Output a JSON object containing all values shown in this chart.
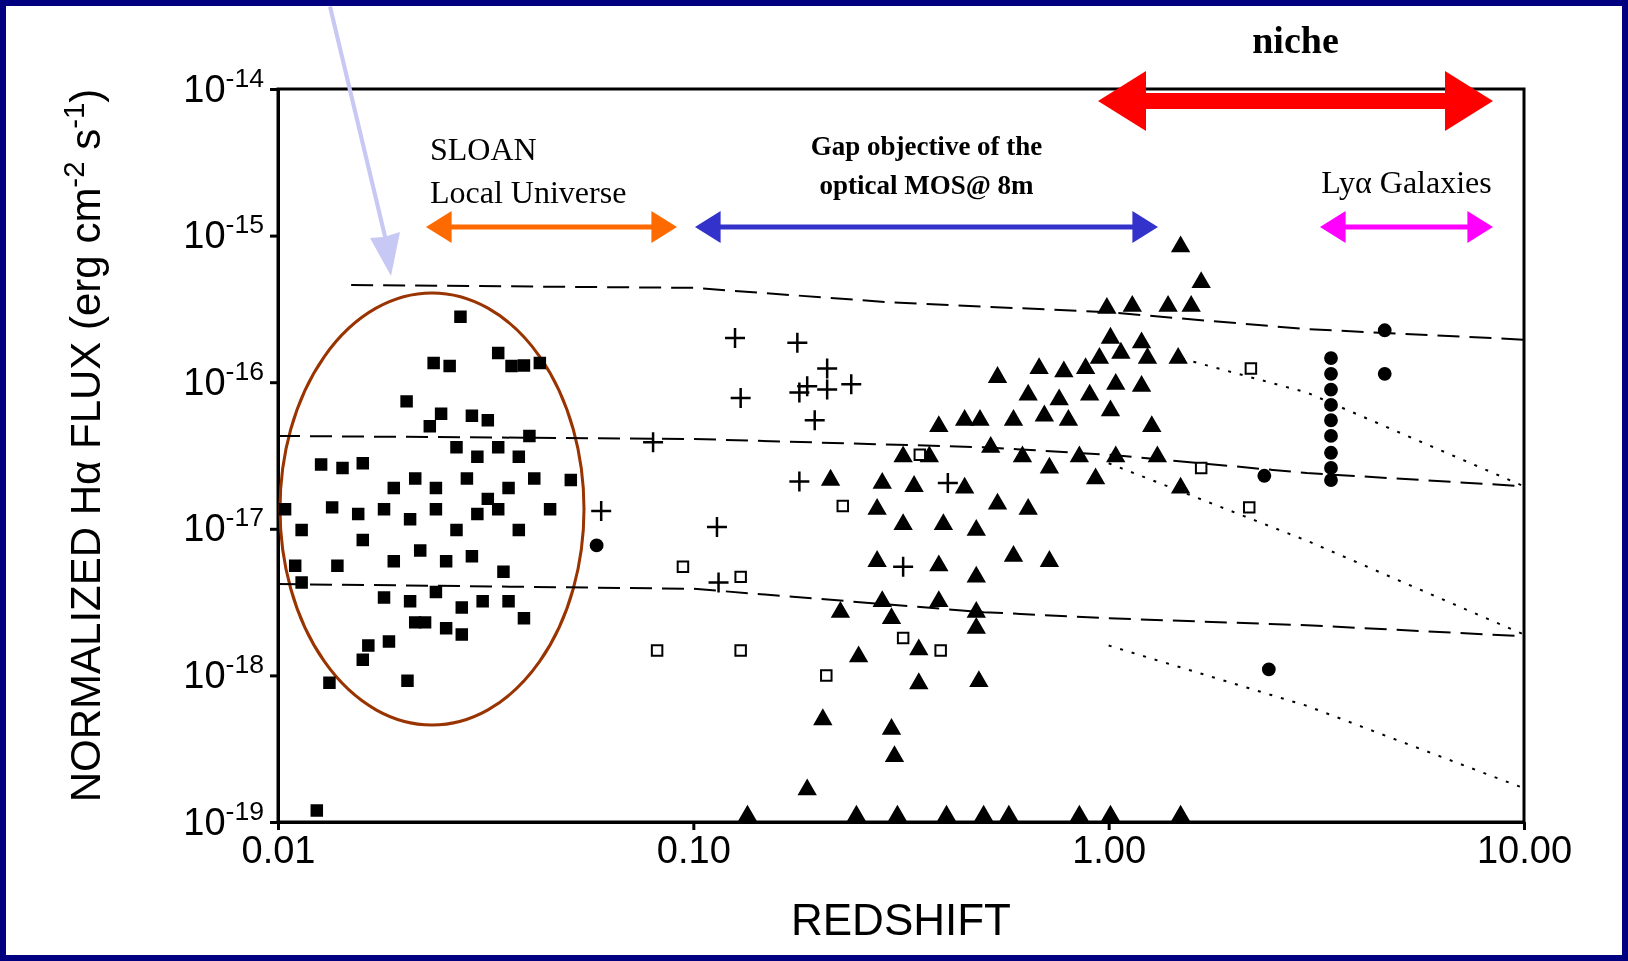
{
  "chart_data": {
    "type": "scatter",
    "xlabel": "REDSHIFT",
    "ylabel": "NORMALIZED Hα FLUX (erg cm$^{-2}$ s$^{-1}$)",
    "log": "xy",
    "xlim": [
      0.01,
      10
    ],
    "ylim": [
      1e-19,
      1e-14
    ],
    "xticks": [
      0.01,
      {
        "value": 0.1,
        "label": "0.10"
      },
      {
        "value": 1,
        "label": "1.00"
      },
      {
        "value": 10,
        "label": "10.00"
      }
    ],
    "yticks": [
      {
        "value": 1e-19,
        "label": "10$^{-19}$"
      },
      {
        "value": 1e-18,
        "label": "10$^{-18}$"
      },
      {
        "value": 1e-17,
        "label": "10$^{-17}$"
      },
      {
        "value": 1e-16,
        "label": "10$^{-16}$"
      },
      {
        "value": 1e-15,
        "label": "10$^{-15}$"
      },
      {
        "value": 1e-14,
        "label": "10$^{-14}$"
      }
    ],
    "annotations": [
      "SLOAN\nLocal Universe",
      "Gap objective of the\noptical MOS@ 8m",
      "niche",
      "Lyα Galaxies"
    ],
    "series": [
      {
        "type": "line",
        "color": "#000000",
        "line_style": "dashed",
        "x": [
          0.015,
          0.1,
          0.3,
          1,
          3,
          10
        ],
        "values": [
          4.6e-16,
          4.4e-16,
          3.5e-16,
          3e-16,
          2.3e-16,
          1.95e-16
        ]
      },
      {
        "type": "line",
        "color": "#000000",
        "line_style": "dotted",
        "x": [
          1.5,
          3,
          10
        ],
        "values": [
          1.45e-16,
          8.5e-17,
          1.95e-17
        ]
      },
      {
        "type": "line",
        "color": "#000000",
        "line_style": "dashed",
        "x": [
          0.01,
          0.1,
          0.5,
          1,
          3,
          10
        ],
        "values": [
          4.3e-17,
          4.1e-17,
          3.6e-17,
          3.2e-17,
          2.4e-17,
          1.95e-17
        ]
      },
      {
        "type": "line",
        "color": "#000000",
        "line_style": "dotted",
        "x": [
          1,
          3,
          10
        ],
        "values": [
          2.8e-17,
          8.3e-18,
          1.9e-18
        ]
      },
      {
        "type": "line",
        "color": "#000000",
        "line_style": "dashed",
        "x": [
          0.01,
          0.1,
          0.5,
          1,
          3,
          10
        ],
        "values": [
          4.2e-18,
          3.9e-18,
          2.7e-18,
          2.45e-18,
          2.2e-18,
          1.85e-18
        ]
      },
      {
        "type": "line",
        "color": "#000000",
        "line_style": "dotted",
        "x": [
          1,
          3,
          10
        ],
        "values": [
          1.6e-18,
          6.2e-19,
          1.7e-19
        ]
      },
      {
        "marker": "square",
        "color": "#000000",
        "x": [
          0.0275,
          0.0237,
          0.0259,
          0.0339,
          0.0365,
          0.0391,
          0.0427,
          0.0204,
          0.0232,
          0.0247,
          0.0293,
          0.032,
          0.0269,
          0.0302,
          0.0339,
          0.038,
          0.0403,
          0.0127,
          0.0143,
          0.016,
          0.019,
          0.0214,
          0.024,
          0.0285,
          0.032,
          0.0359,
          0.0414,
          0.0507,
          0.0104,
          0.0114,
          0.0135,
          0.0156,
          0.018,
          0.0208,
          0.024,
          0.0269,
          0.0302,
          0.0339,
          0.0452,
          0.038,
          0.011,
          0.0139,
          0.016,
          0.019,
          0.022,
          0.0254,
          0.0293,
          0.0349,
          0.0114,
          0.018,
          0.0208,
          0.024,
          0.0277,
          0.0311,
          0.0359,
          0.0391,
          0.0165,
          0.0185,
          0.0214,
          0.0226,
          0.0254,
          0.0277,
          0.016,
          0.0205,
          0.0133,
          0.0124
        ],
        "values": [
          2.8e-16,
          1.35e-16,
          1.29e-16,
          1.58e-16,
          1.29e-16,
          1.3e-16,
          1.35e-16,
          7.4e-17,
          5e-17,
          6.1e-17,
          5.9e-17,
          5.5e-17,
          3.6e-17,
          3.1e-17,
          3.6e-17,
          3.1e-17,
          4.3e-17,
          2.75e-17,
          2.6e-17,
          2.8e-17,
          1.9e-17,
          2.2e-17,
          1.9e-17,
          2.2e-17,
          1.6e-17,
          1.9e-17,
          2.2e-17,
          2.15e-17,
          1.36e-17,
          9.8e-18,
          1.4e-17,
          1.26e-17,
          1.36e-17,
          1.16e-17,
          1.36e-17,
          9.8e-18,
          1.26e-17,
          1.36e-17,
          1.36e-17,
          9.8e-18,
          5.6e-18,
          5.6e-18,
          8.4e-18,
          6e-18,
          7.1e-18,
          6e-18,
          6.5e-18,
          5.1e-18,
          4.3e-18,
          3.4e-18,
          3.2e-18,
          3.7e-18,
          2.9e-18,
          3.2e-18,
          3.2e-18,
          2.45e-18,
          1.6e-18,
          1.7e-18,
          2.3e-18,
          2.3e-18,
          2.1e-18,
          1.9e-18,
          1.28e-18,
          9.2e-19,
          8.9e-19,
          1.2e-19
        ]
      },
      {
        "marker": "triangle",
        "color": "#000000",
        "x": [
          1.49,
          1.67,
          0.99,
          1.14,
          1.39,
          1.58,
          0.68,
          0.78,
          0.88,
          1.01,
          1.2,
          0.95,
          1.07,
          1.24,
          1.47,
          0.54,
          0.64,
          0.76,
          0.9,
          1.04,
          1.2,
          0.49,
          0.59,
          0.7,
          0.8,
          1.01,
          1.27,
          0.39,
          0.45,
          0.52,
          0.62,
          0.72,
          0.85,
          1.04,
          1.31,
          0.32,
          0.37,
          0.285,
          0.34,
          0.45,
          0.54,
          0.64,
          0.93,
          1.49,
          0.214,
          0.277,
          0.32,
          0.4,
          0.48,
          0.59,
          0.72,
          0.277,
          0.39,
          0.48,
          0.285,
          0.39,
          0.48,
          0.226,
          0.3,
          0.349,
          0.48,
          0.25,
          0.349,
          0.487,
          0.205,
          0.3,
          0.305,
          0.188,
          0.135,
          0.247,
          0.31,
          0.407,
          0.5,
          0.575,
          0.85,
          1.01,
          1.49
        ],
        "values": [
          8.4e-16,
          4.8e-16,
          3.2e-16,
          3.3e-16,
          3.3e-16,
          3.3e-16,
          1.24e-16,
          1.18e-16,
          1.24e-16,
          2e-16,
          1.86e-16,
          1.46e-16,
          1.58e-16,
          1.46e-16,
          1.46e-16,
          1.08e-16,
          8.2e-17,
          7.6e-17,
          8.2e-17,
          9.7e-17,
          9.4e-17,
          5.5e-17,
          5.5e-17,
          5.9e-17,
          5.5e-17,
          6.4e-17,
          5e-17,
          5e-17,
          5.5e-17,
          3.6e-17,
          3.1e-17,
          2.6e-17,
          3.1e-17,
          3.1e-17,
          3.1e-17,
          3.1e-17,
          3.1e-17,
          2.05e-17,
          1.95e-17,
          1.9e-17,
          1.48e-17,
          1.36e-17,
          2.2e-17,
          1.9e-17,
          2.15e-17,
          1.36e-17,
          1.07e-17,
          1.07e-17,
          9.8e-18,
          6.5e-18,
          6e-18,
          6e-18,
          5.6e-18,
          4.7e-18,
          3.2e-18,
          3.2e-18,
          2.7e-18,
          2.7e-18,
          2.45e-18,
          1.5e-18,
          2.1e-18,
          1.34e-18,
          8.8e-19,
          9.1e-19,
          5e-19,
          4.3e-19,
          2.8e-19,
          1.66e-19,
          1.1e-19,
          1.1e-19,
          1.1e-19,
          1.1e-19,
          1.1e-19,
          1.1e-19,
          1.1e-19,
          1.1e-19,
          1.1e-19
        ]
      },
      {
        "marker": "square",
        "color": "#ffffff",
        "x": [
          2.2,
          1.67,
          2.18,
          0.351,
          0.229,
          0.0944,
          0.13,
          0.0818,
          0.13,
          0.32,
          0.209,
          0.394
        ],
        "values": [
          1.24e-16,
          2.6e-17,
          1.4e-17,
          3.2e-17,
          1.43e-17,
          5.5e-18,
          4.7e-18,
          1.48e-18,
          1.48e-18,
          1.8e-18,
          1e-18,
          1.48e-18
        ]
      },
      {
        "marker": "cross",
        "color": "#000000",
        "x": [
          0.126,
          0.178,
          0.21,
          0.13,
          0.18,
          0.188,
          0.21,
          0.24,
          0.196,
          0.08,
          0.06,
          0.114,
          0.18,
          0.32,
          0.115,
          0.41
        ],
        "values": [
          2e-16,
          1.86e-16,
          1.24e-16,
          7.8e-17,
          8.5e-17,
          9.4e-17,
          8.9e-17,
          9.7e-17,
          5.5e-17,
          3.9e-17,
          1.32e-17,
          1.03e-17,
          2.1e-17,
          5.5e-18,
          4.3e-18,
          2.05e-17
        ]
      },
      {
        "marker": "circle",
        "color": "#000000",
        "x": [
          3.43,
          3.43,
          3.43,
          3.43,
          3.43,
          3.43,
          3.43,
          3.43,
          3.43,
          4.62,
          4.62,
          2.37,
          2.43,
          0.0585
        ],
        "values": [
          1.46e-16,
          1.14e-16,
          8.9e-17,
          7e-17,
          5.5e-17,
          4.3e-17,
          3.3e-17,
          2.6e-17,
          2.15e-17,
          2.26e-16,
          1.14e-16,
          2.3e-17,
          1.1e-18,
          7.7e-18
        ]
      }
    ]
  }
}
